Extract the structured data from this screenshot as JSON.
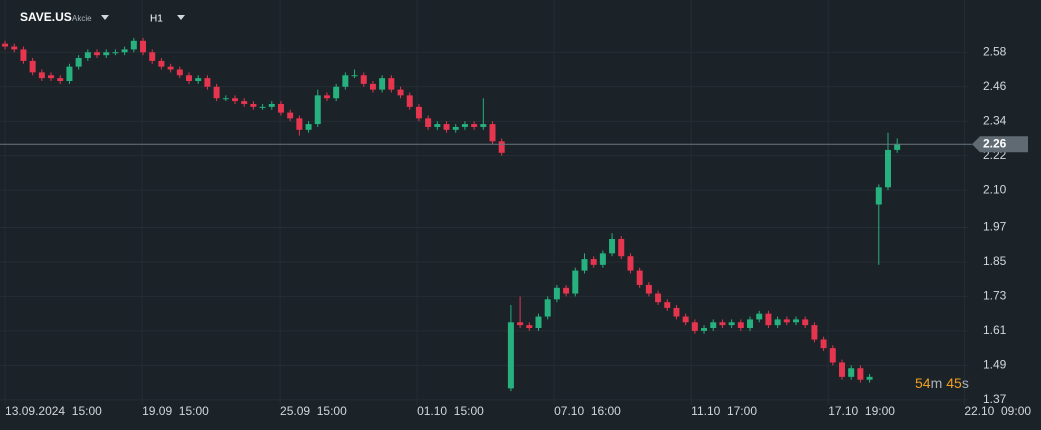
{
  "chart_data": {
    "type": "candlestick",
    "title": "SAVE.US",
    "subtitle": "Akcie",
    "timeframe": "H1",
    "up_color": "#26b17f",
    "down_color": "#e5354f",
    "grid": true,
    "last_price": 2.26,
    "countdown": [
      "54",
      "m",
      "45",
      "s"
    ],
    "ylim": [
      1.352,
      2.762
    ],
    "yticks": [
      2.58,
      2.46,
      2.34,
      2.22,
      {
        "value": 2.1,
        "label": "2.10"
      },
      1.97,
      1.85,
      1.73,
      1.61,
      1.49,
      1.37
    ],
    "xlim": [
      -0.55,
      104.7
    ],
    "xticks": [
      {
        "value": 0,
        "label": "13.09.2024  15:00"
      },
      {
        "value": 14.9,
        "label": "19.09  15:00"
      },
      {
        "value": 29.9,
        "label": "25.09  15:00"
      },
      {
        "value": 44.8,
        "label": "01.10  15:00"
      },
      {
        "value": 59.7,
        "label": "07.10  16:00"
      },
      {
        "value": 74.6,
        "label": "11.10  17:00"
      },
      {
        "value": 89.5,
        "label": "17.10  19:00"
      },
      {
        "value": 104.3,
        "label": "22.10  09:00"
      }
    ],
    "open": [
      2.61,
      2.6,
      2.59,
      2.55,
      2.51,
      2.5,
      2.49,
      2.48,
      2.53,
      2.56,
      2.58,
      2.57,
      2.58,
      2.58,
      2.59,
      2.62,
      2.58,
      2.55,
      2.53,
      2.52,
      2.5,
      2.48,
      2.49,
      2.46,
      2.42,
      2.42,
      2.41,
      2.4,
      2.39,
      2.39,
      2.4,
      2.37,
      2.35,
      2.31,
      2.33,
      2.43,
      2.42,
      2.46,
      2.5,
      2.5,
      2.47,
      2.45,
      2.49,
      2.45,
      2.43,
      2.39,
      2.35,
      2.32,
      2.33,
      2.31,
      2.32,
      2.33,
      2.32,
      2.33,
      2.27,
      1.41,
      1.64,
      1.63,
      1.62,
      1.66,
      1.72,
      1.76,
      1.74,
      1.82,
      1.86,
      1.84,
      1.88,
      1.93,
      1.87,
      1.82,
      1.77,
      1.74,
      1.71,
      1.69,
      1.66,
      1.64,
      1.61,
      1.62,
      1.64,
      1.63,
      1.64,
      1.62,
      1.65,
      1.67,
      1.63,
      1.65,
      1.64,
      1.65,
      1.63,
      1.58,
      1.55,
      1.5,
      1.45,
      1.48,
      1.44,
      2.05,
      2.11,
      2.24
    ],
    "high": [
      2.62,
      2.61,
      2.6,
      2.56,
      2.52,
      2.51,
      2.5,
      2.54,
      2.57,
      2.59,
      2.59,
      2.59,
      2.59,
      2.6,
      2.63,
      2.63,
      2.59,
      2.56,
      2.54,
      2.53,
      2.51,
      2.5,
      2.5,
      2.47,
      2.43,
      2.43,
      2.42,
      2.41,
      2.4,
      2.41,
      2.41,
      2.38,
      2.36,
      2.34,
      2.45,
      2.44,
      2.47,
      2.51,
      2.52,
      2.51,
      2.48,
      2.5,
      2.5,
      2.46,
      2.44,
      2.4,
      2.36,
      2.34,
      2.34,
      2.33,
      2.34,
      2.34,
      2.42,
      2.34,
      2.28,
      1.7,
      1.73,
      1.64,
      1.67,
      1.73,
      1.77,
      1.77,
      1.83,
      1.88,
      1.87,
      1.89,
      1.95,
      1.94,
      1.88,
      1.83,
      1.78,
      1.75,
      1.72,
      1.7,
      1.67,
      1.65,
      1.63,
      1.65,
      1.65,
      1.65,
      1.65,
      1.66,
      1.68,
      1.68,
      1.66,
      1.66,
      1.66,
      1.66,
      1.64,
      1.59,
      1.56,
      1.51,
      1.49,
      1.49,
      1.46,
      2.12,
      2.3,
      2.28
    ],
    "low": [
      2.59,
      2.58,
      2.54,
      2.5,
      2.48,
      2.48,
      2.47,
      2.47,
      2.52,
      2.55,
      2.56,
      2.56,
      2.57,
      2.57,
      2.58,
      2.57,
      2.54,
      2.52,
      2.51,
      2.49,
      2.47,
      2.47,
      2.45,
      2.41,
      2.41,
      2.4,
      2.39,
      2.38,
      2.38,
      2.38,
      2.36,
      2.34,
      2.29,
      2.3,
      2.32,
      2.41,
      2.41,
      2.45,
      2.49,
      2.46,
      2.44,
      2.44,
      2.44,
      2.42,
      2.38,
      2.34,
      2.31,
      2.31,
      2.3,
      2.3,
      2.31,
      2.31,
      2.31,
      2.26,
      2.22,
      1.4,
      1.62,
      1.61,
      1.61,
      1.65,
      1.71,
      1.73,
      1.73,
      1.81,
      1.83,
      1.83,
      1.87,
      1.86,
      1.81,
      1.76,
      1.73,
      1.7,
      1.68,
      1.65,
      1.63,
      1.6,
      1.6,
      1.61,
      1.62,
      1.62,
      1.61,
      1.61,
      1.64,
      1.62,
      1.62,
      1.63,
      1.63,
      1.62,
      1.57,
      1.54,
      1.49,
      1.44,
      1.44,
      1.43,
      1.43,
      1.84,
      2.1,
      2.23
    ],
    "close": [
      2.6,
      2.59,
      2.55,
      2.51,
      2.49,
      2.49,
      2.48,
      2.53,
      2.56,
      2.58,
      2.57,
      2.58,
      2.58,
      2.59,
      2.62,
      2.58,
      2.55,
      2.53,
      2.52,
      2.5,
      2.48,
      2.49,
      2.46,
      2.42,
      2.42,
      2.41,
      2.4,
      2.39,
      2.39,
      2.4,
      2.37,
      2.35,
      2.31,
      2.33,
      2.43,
      2.42,
      2.46,
      2.5,
      2.5,
      2.47,
      2.45,
      2.49,
      2.45,
      2.43,
      2.39,
      2.35,
      2.32,
      2.33,
      2.31,
      2.32,
      2.33,
      2.32,
      2.33,
      2.27,
      2.23,
      1.64,
      1.63,
      1.62,
      1.66,
      1.72,
      1.76,
      1.74,
      1.82,
      1.86,
      1.84,
      1.88,
      1.93,
      1.87,
      1.82,
      1.77,
      1.74,
      1.71,
      1.69,
      1.66,
      1.64,
      1.61,
      1.62,
      1.64,
      1.63,
      1.64,
      1.62,
      1.65,
      1.67,
      1.63,
      1.65,
      1.64,
      1.65,
      1.63,
      1.58,
      1.55,
      1.5,
      1.45,
      1.48,
      1.44,
      1.45,
      2.11,
      2.24,
      2.26
    ]
  }
}
